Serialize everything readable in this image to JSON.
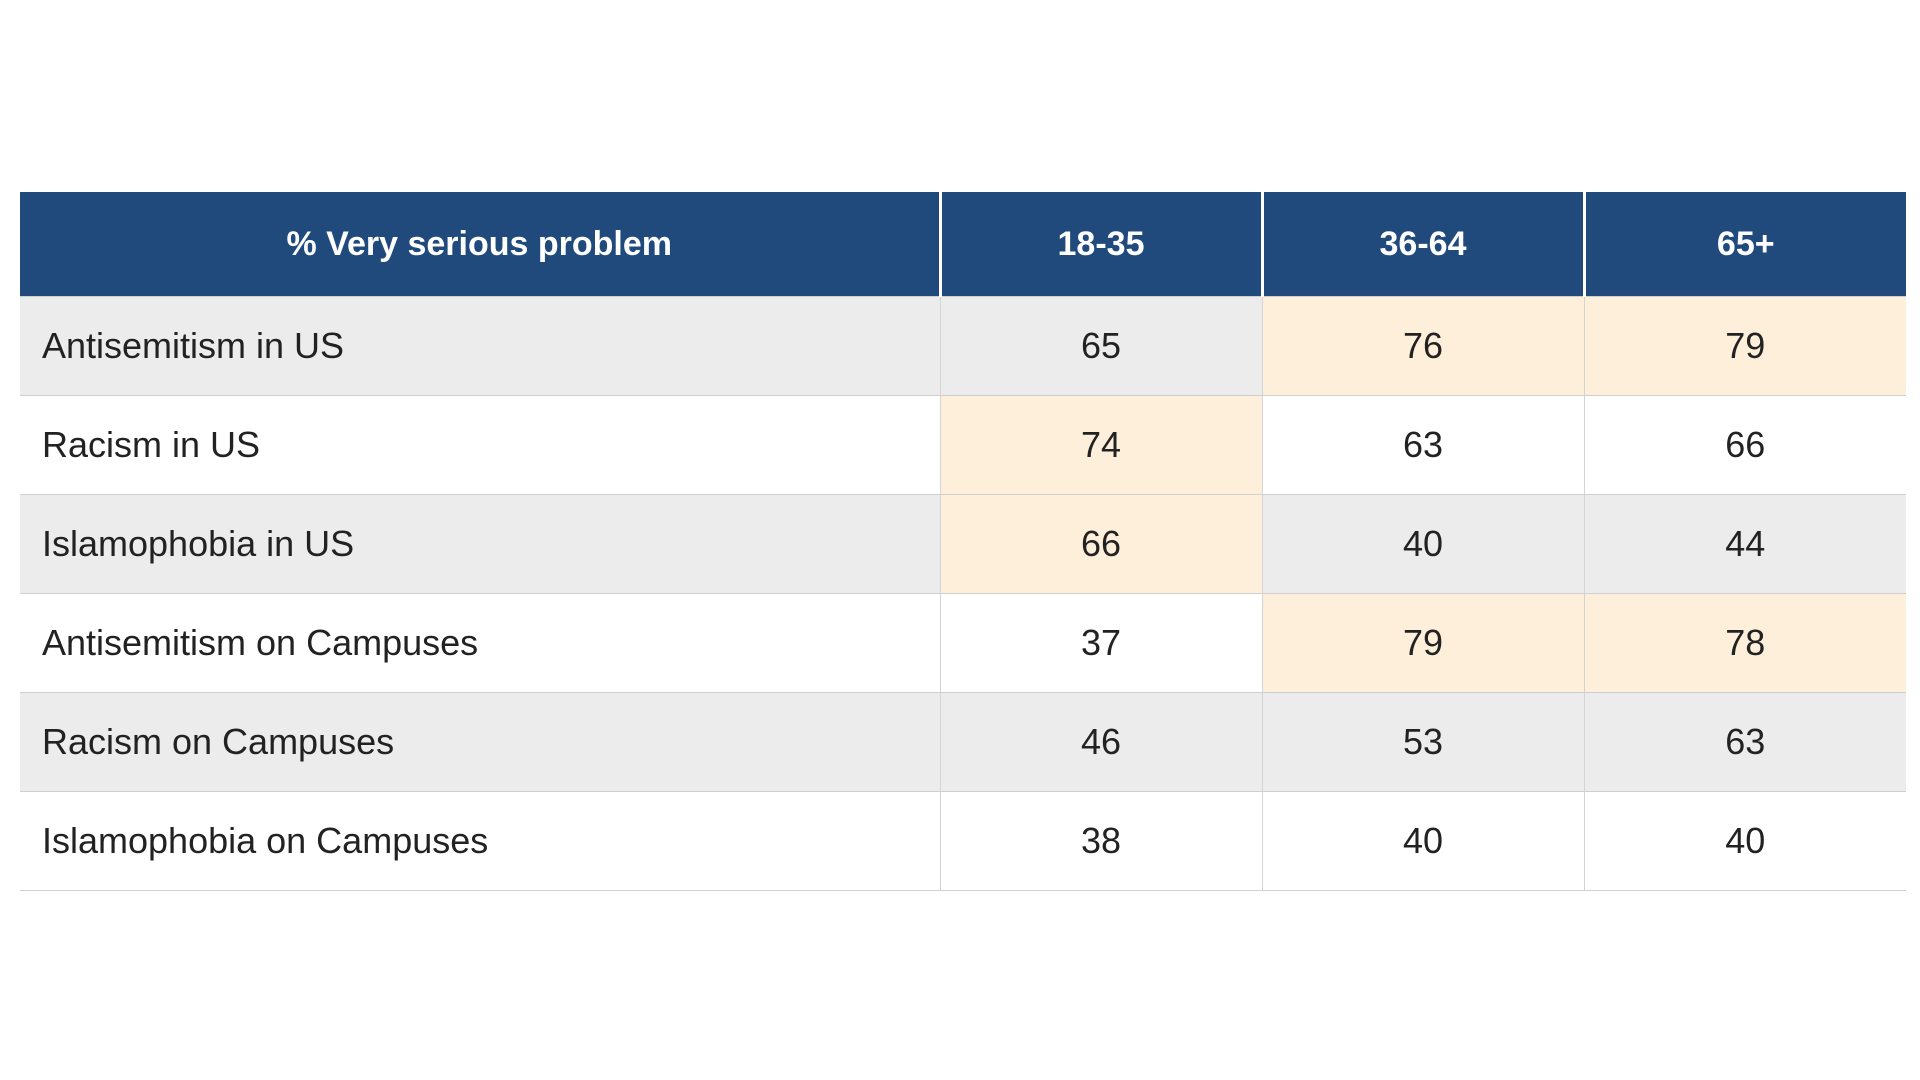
{
  "chart_data": {
    "type": "table",
    "header_label": "% Very serious problem",
    "columns": [
      "18-35",
      "36-64",
      "65+"
    ],
    "rows": [
      {
        "label": "Antisemitism in US",
        "values": [
          65,
          76,
          79
        ],
        "highlighted": [
          false,
          true,
          true
        ]
      },
      {
        "label": "Racism in US",
        "values": [
          74,
          63,
          66
        ],
        "highlighted": [
          true,
          false,
          false
        ]
      },
      {
        "label": "Islamophobia in US",
        "values": [
          66,
          40,
          44
        ],
        "highlighted": [
          true,
          false,
          false
        ]
      },
      {
        "label": "Antisemitism on Campuses",
        "values": [
          37,
          79,
          78
        ],
        "highlighted": [
          false,
          true,
          true
        ]
      },
      {
        "label": "Racism on Campuses",
        "values": [
          46,
          53,
          63
        ],
        "highlighted": [
          false,
          false,
          false
        ]
      },
      {
        "label": "Islamophobia on Campuses",
        "values": [
          38,
          40,
          40
        ],
        "highlighted": [
          false,
          false,
          false
        ]
      }
    ]
  },
  "colors": {
    "header_bg": "#204a7c",
    "header_text": "#ffffff",
    "row_shaded": "#ececec",
    "row_plain": "#ffffff",
    "highlight": "#fdefda"
  }
}
